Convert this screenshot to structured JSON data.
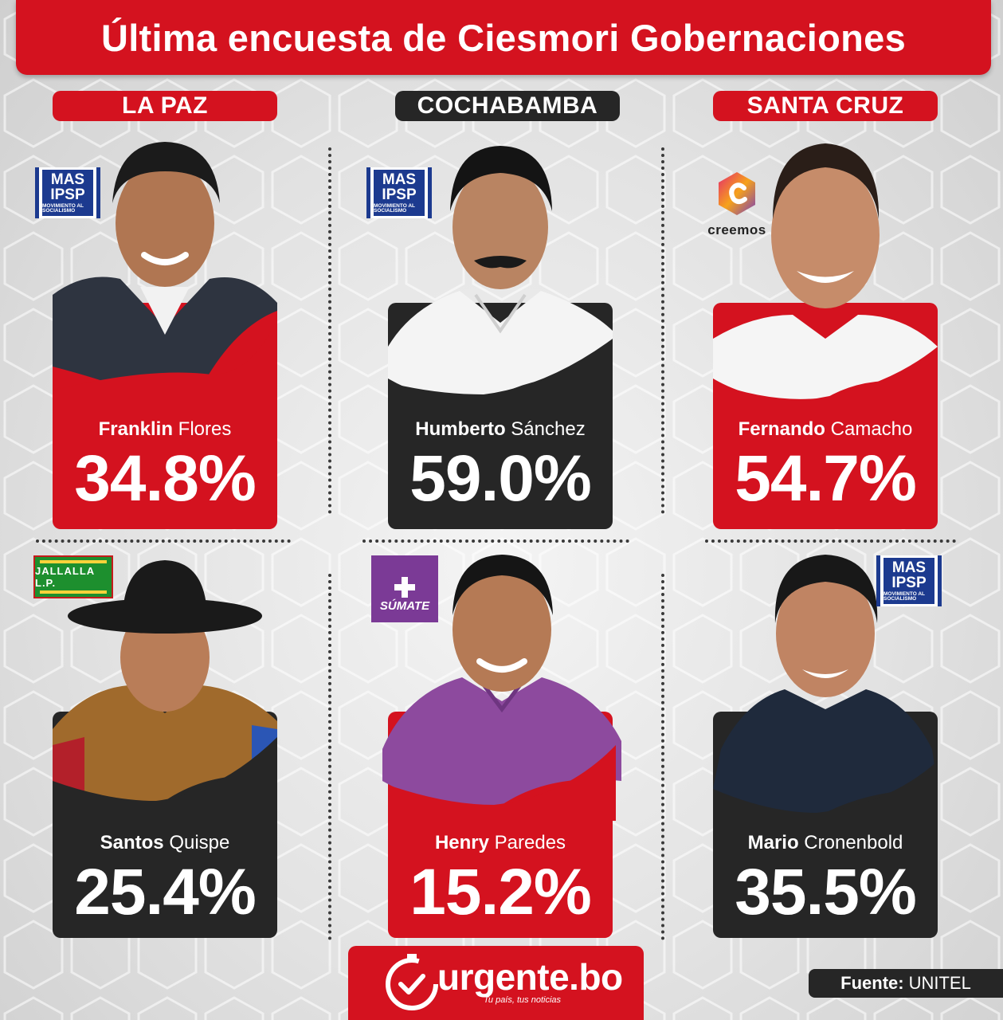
{
  "title": "Última encuesta de Ciesmori Gobernaciones",
  "regions": [
    {
      "label": "LA PAZ"
    },
    {
      "label": "COCHABAMBA"
    },
    {
      "label": "SANTA CRUZ"
    }
  ],
  "candidates": [
    {
      "first": "Franklin",
      "last": "Flores",
      "percent": "34.8%",
      "party_logo": "mas-ipsp-logo",
      "color": "#d4121f"
    },
    {
      "first": "Humberto",
      "last": "Sánchez",
      "percent": "59.0%",
      "party_logo": "mas-ipsp-logo",
      "color": "#262626"
    },
    {
      "first": "Fernando",
      "last": "Camacho",
      "percent": "54.7%",
      "party_logo": "creemos-logo",
      "color": "#d4121f"
    },
    {
      "first": "Santos",
      "last": "Quispe",
      "percent": "25.4%",
      "party_logo": "jallalla-logo",
      "color": "#262626"
    },
    {
      "first": "Henry",
      "last": "Paredes",
      "percent": "15.2%",
      "party_logo": "sumate-logo",
      "color": "#d4121f"
    },
    {
      "first": "Mario",
      "last": "Cronenbold",
      "percent": "35.5%",
      "party_logo": "mas-ipsp-logo",
      "color": "#262626"
    }
  ],
  "logos": {
    "mas": {
      "line1": "MAS",
      "line2": "IPSP",
      "line3": "MOVIMIENTO AL SOCIALISMO"
    },
    "creemos": {
      "text": "creemos"
    },
    "jallalla": {
      "text": "JALLALLA L.P."
    },
    "sumate": {
      "text": "SÚMATE"
    }
  },
  "footer": {
    "brand": "urgente.bo",
    "tagline": "Tu país, tus noticias",
    "source_label": "Fuente:",
    "source_value": "UNITEL"
  },
  "colors": {
    "accent": "#d4121f",
    "dark": "#262626",
    "mas_blue": "#1c3a8f"
  }
}
